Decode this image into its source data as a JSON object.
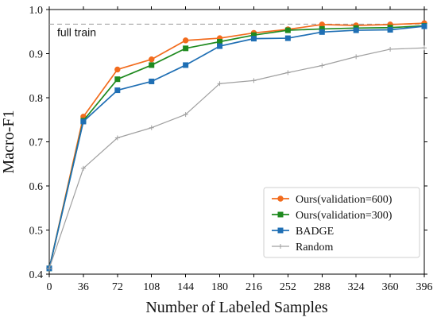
{
  "chart_data": {
    "type": "line",
    "title": "",
    "xlabel": "Number of Labeled Samples",
    "ylabel": "Macro-F1",
    "x": [
      0,
      36,
      72,
      108,
      144,
      180,
      216,
      252,
      288,
      324,
      360,
      396
    ],
    "xticks": [
      "0",
      "36",
      "72",
      "108",
      "144",
      "180",
      "216",
      "252",
      "288",
      "324",
      "360",
      "396"
    ],
    "yticks": [
      "0.4",
      "0.5",
      "0.6",
      "0.7",
      "0.8",
      "0.9",
      "1.0"
    ],
    "xlim": [
      0,
      396
    ],
    "ylim": [
      0.4,
      1.0
    ],
    "grid": false,
    "legend_position": "bottom-right",
    "reference_line": {
      "label": "full train",
      "y": 0.967,
      "color": "#999999",
      "style": "dashed"
    },
    "series": [
      {
        "name": "Ours(validation=600)",
        "color": "#f26b1d",
        "marker": "circle",
        "values": [
          0.413,
          0.757,
          0.864,
          0.887,
          0.93,
          0.935,
          0.947,
          0.955,
          0.966,
          0.964,
          0.966,
          0.969
        ]
      },
      {
        "name": "Ours(validation=300)",
        "color": "#1f8a1f",
        "marker": "square",
        "values": [
          0.413,
          0.748,
          0.842,
          0.874,
          0.912,
          0.927,
          0.942,
          0.953,
          0.956,
          0.958,
          0.959,
          0.963
        ]
      },
      {
        "name": "BADGE",
        "color": "#1f6fb4",
        "marker": "square",
        "values": [
          0.413,
          0.746,
          0.817,
          0.837,
          0.874,
          0.917,
          0.934,
          0.935,
          0.949,
          0.953,
          0.954,
          0.962
        ]
      },
      {
        "name": "Random",
        "color": "#a0a0a0",
        "marker": "plus",
        "values": [
          0.413,
          0.64,
          0.709,
          0.732,
          0.762,
          0.832,
          0.839,
          0.857,
          0.873,
          0.893,
          0.91,
          0.913
        ]
      }
    ]
  }
}
